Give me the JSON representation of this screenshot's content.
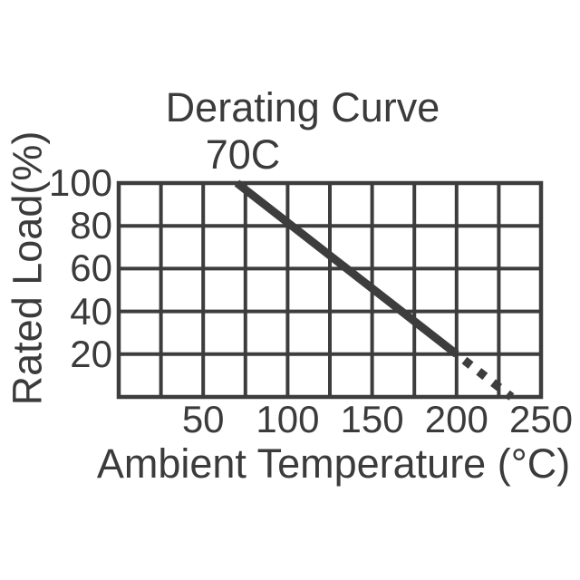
{
  "chart_data": {
    "type": "line",
    "title": "Derating Curve",
    "annotation": "70C",
    "xlabel": "Ambient Temperature (°C)",
    "ylabel": "Rated Load(%)",
    "xlim": [
      0,
      250
    ],
    "ylim": [
      0,
      100
    ],
    "x_ticks": [
      50,
      100,
      150,
      200,
      250
    ],
    "y_ticks": [
      20,
      40,
      60,
      80,
      100
    ],
    "x_grid_step": 25,
    "y_grid_step": 20,
    "grid": true,
    "legend": "none",
    "series": [
      {
        "name": "derating-line-solid",
        "style": "solid",
        "points": [
          [
            70,
            100
          ],
          [
            200,
            20
          ]
        ]
      },
      {
        "name": "derating-line-dotted",
        "style": "dotted",
        "points": [
          [
            200,
            20
          ],
          [
            232.5,
            0
          ]
        ]
      }
    ],
    "colors": {
      "line": "#3d3d3d",
      "grid": "#3d3d3d",
      "text": "#3b3b3b",
      "background": "#ffffff"
    }
  }
}
